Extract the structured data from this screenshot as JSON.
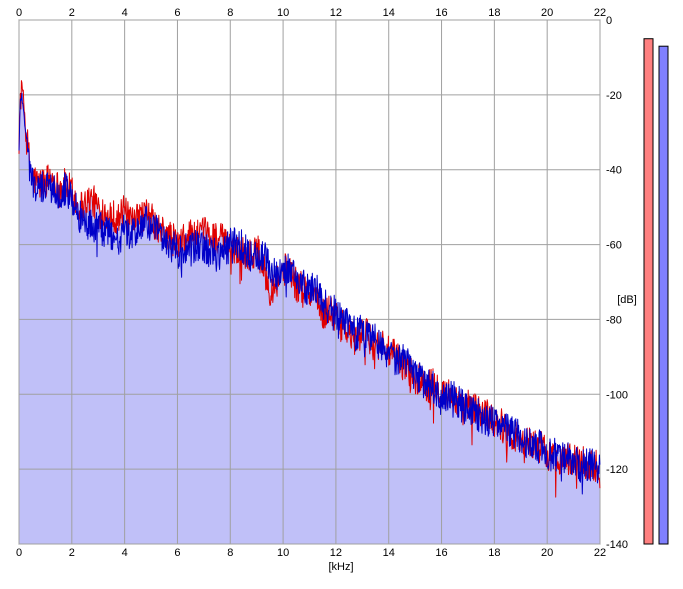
{
  "chart_data": {
    "type": "area",
    "title": "",
    "xlabel": "[kHz]",
    "ylabel": "[dB]",
    "xlim": [
      0,
      22
    ],
    "ylim": [
      -140,
      0
    ],
    "x_ticks": [
      "0",
      "2",
      "4",
      "6",
      "8",
      "10",
      "12",
      "14",
      "16",
      "18",
      "20",
      "22"
    ],
    "y_ticks": [
      "0",
      "-20",
      "-40",
      "-60",
      "-80",
      "-100",
      "-120",
      "-140"
    ],
    "grid": true,
    "legend": "none",
    "colors": {
      "fill": "#c0c0f8",
      "channel_1": "#e00000",
      "channel_2": "#0000c8",
      "grid": "#a0a0a0",
      "meter_1": "#ff8080",
      "meter_2": "#8080ff"
    },
    "series": [
      {
        "color": "#e00000",
        "x": [
          0,
          0.05,
          0.1,
          0.15,
          0.2,
          0.3,
          0.4,
          0.5,
          0.75,
          1,
          1.25,
          1.5,
          1.75,
          2,
          2.25,
          2.5,
          2.75,
          3,
          3.25,
          3.5,
          3.75,
          4,
          4.25,
          4.5,
          4.75,
          5,
          5.25,
          5.5,
          5.75,
          6,
          6.25,
          6.5,
          6.75,
          7,
          7.25,
          7.5,
          7.75,
          8,
          8.25,
          8.5,
          8.75,
          9,
          9.25,
          9.5,
          9.75,
          10,
          10.25,
          10.5,
          10.75,
          11,
          11.25,
          11.5,
          11.75,
          12,
          12.25,
          12.5,
          12.75,
          13,
          13.25,
          13.5,
          13.75,
          14,
          14.25,
          14.5,
          14.75,
          15,
          15.25,
          15.5,
          15.75,
          16,
          16.25,
          16.5,
          16.75,
          17,
          17.25,
          17.5,
          17.75,
          18,
          18.25,
          18.5,
          18.75,
          19,
          19.25,
          19.5,
          19.75,
          20,
          20.25,
          20.5,
          20.75,
          21,
          21.25,
          21.5,
          21.75,
          22
        ],
        "values": [
          -30,
          -20,
          -17,
          -19,
          -24,
          -32,
          -38,
          -42,
          -44,
          -43,
          -42,
          -45,
          -44,
          -46,
          -50,
          -49,
          -48,
          -50,
          -51,
          -52,
          -53,
          -51,
          -55,
          -53,
          -52,
          -53,
          -56,
          -57,
          -58,
          -60,
          -59,
          -57,
          -58,
          -57,
          -58,
          -58,
          -59,
          -61,
          -61,
          -62,
          -63,
          -61,
          -66,
          -72,
          -70,
          -67,
          -66,
          -71,
          -71,
          -74,
          -73,
          -79,
          -77,
          -80,
          -82,
          -84,
          -86,
          -83,
          -85,
          -87,
          -86,
          -89,
          -90,
          -92,
          -93,
          -96,
          -96,
          -98,
          -97,
          -99,
          -100,
          -101,
          -104,
          -103,
          -104,
          -105,
          -105,
          -107,
          -108,
          -110,
          -111,
          -112,
          -113,
          -113,
          -114,
          -116,
          -117,
          -117,
          -117,
          -118,
          -118,
          -119,
          -119,
          -119
        ]
      },
      {
        "color": "#0000c8",
        "x": [
          0,
          0.05,
          0.1,
          0.15,
          0.2,
          0.3,
          0.4,
          0.5,
          0.75,
          1,
          1.25,
          1.5,
          1.75,
          2,
          2.25,
          2.5,
          2.75,
          3,
          3.25,
          3.5,
          3.75,
          4,
          4.25,
          4.5,
          4.75,
          5,
          5.25,
          5.5,
          5.75,
          6,
          6.25,
          6.5,
          6.75,
          7,
          7.25,
          7.5,
          7.75,
          8,
          8.25,
          8.5,
          8.75,
          9,
          9.25,
          9.5,
          9.75,
          10,
          10.25,
          10.5,
          10.75,
          11,
          11.25,
          11.5,
          11.75,
          12,
          12.25,
          12.5,
          12.75,
          13,
          13.25,
          13.5,
          13.75,
          14,
          14.25,
          14.5,
          14.75,
          15,
          15.25,
          15.5,
          15.75,
          16,
          16.25,
          16.5,
          16.75,
          17,
          17.25,
          17.5,
          17.75,
          18,
          18.25,
          18.5,
          18.75,
          19,
          19.25,
          19.5,
          19.75,
          20,
          20.25,
          20.5,
          20.75,
          21,
          21.25,
          21.5,
          21.75,
          22
        ],
        "values": [
          -35,
          -21,
          -20,
          -22,
          -26,
          -33,
          -39,
          -43,
          -46,
          -44,
          -45,
          -46,
          -45,
          -48,
          -52,
          -54,
          -55,
          -55,
          -57,
          -57,
          -59,
          -56,
          -58,
          -56,
          -54,
          -55,
          -57,
          -59,
          -60,
          -62,
          -62,
          -60,
          -61,
          -61,
          -62,
          -63,
          -62,
          -60,
          -59,
          -61,
          -63,
          -63,
          -63,
          -66,
          -68,
          -67,
          -66,
          -69,
          -71,
          -72,
          -72,
          -76,
          -77,
          -78,
          -79,
          -81,
          -84,
          -83,
          -84,
          -85,
          -87,
          -89,
          -91,
          -91,
          -92,
          -95,
          -96,
          -98,
          -98,
          -102,
          -101,
          -101,
          -103,
          -104,
          -105,
          -106,
          -107,
          -107,
          -108,
          -109,
          -111,
          -111,
          -113,
          -114,
          -114,
          -116,
          -116,
          -117,
          -117,
          -118,
          -119,
          -119,
          -119,
          -120
        ]
      }
    ],
    "meters": [
      {
        "color": "#ff8080",
        "level_db": -5
      },
      {
        "color": "#8080ff",
        "level_db": -7
      }
    ]
  }
}
